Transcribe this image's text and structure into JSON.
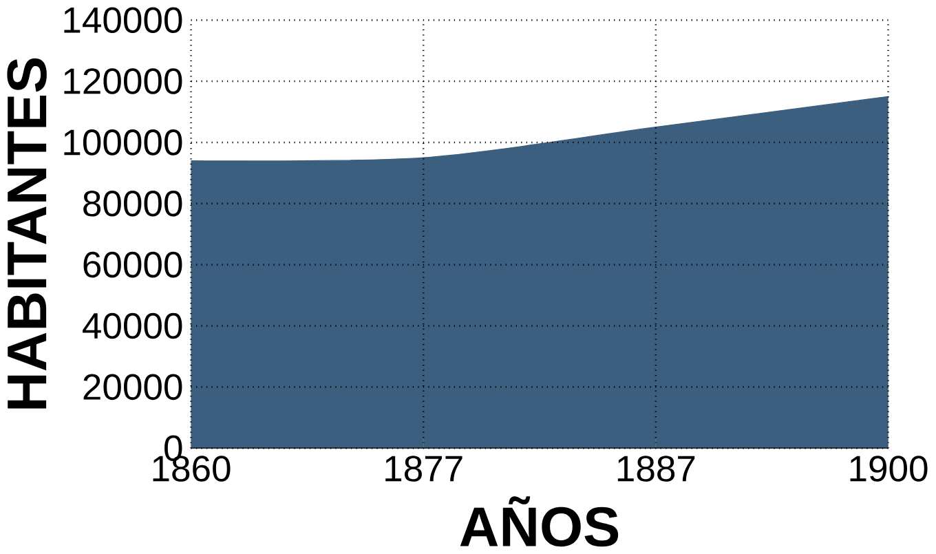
{
  "chart_data": {
    "type": "area",
    "xlabel": "AÑOS",
    "ylabel": "HABITANTES",
    "categories": [
      "1860",
      "1877",
      "1887",
      "1900"
    ],
    "values": [
      94000,
      95000,
      105000,
      115000
    ],
    "color": "#3d5f7f",
    "ylim": [
      0,
      140000
    ],
    "yticks": [
      0,
      20000,
      40000,
      60000,
      80000,
      100000,
      120000,
      140000
    ],
    "grid": true,
    "line_style": "solid"
  }
}
